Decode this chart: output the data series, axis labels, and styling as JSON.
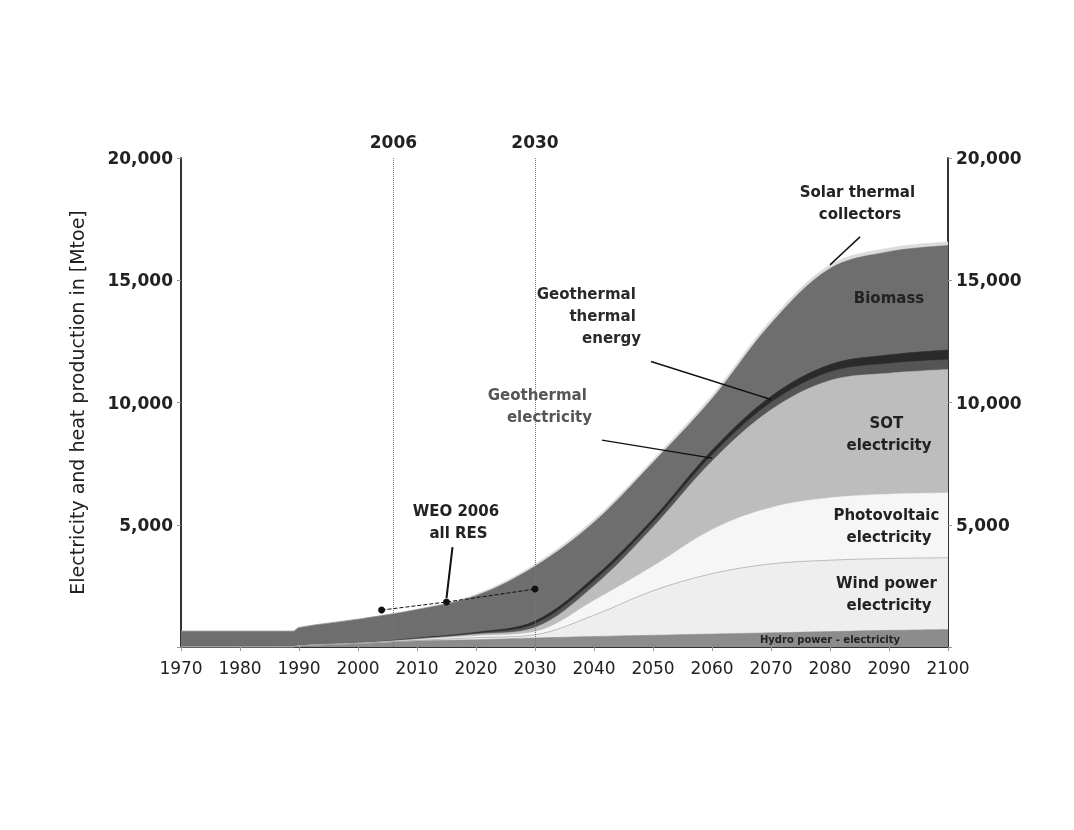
{
  "chart_data": {
    "type": "area",
    "stacked": true,
    "ylabel": "Electricity and heat production in [Mtoe]",
    "x": [
      1970,
      1989,
      1990,
      2000,
      2010,
      2020,
      2030,
      2040,
      2050,
      2060,
      2070,
      2080,
      2090,
      2100
    ],
    "xlim": [
      1970,
      2100
    ],
    "xticks": [
      1970,
      1980,
      1990,
      2000,
      2010,
      2020,
      2030,
      2040,
      2050,
      2060,
      2070,
      2080,
      2090,
      2100
    ],
    "ylim": [
      0,
      20000
    ],
    "yticks": [
      {
        "value": 0,
        "label": null
      },
      {
        "value": 5000,
        "label": "5,000"
      },
      {
        "value": 10000,
        "label": "10,000"
      },
      {
        "value": 15000,
        "label": "15,000"
      },
      {
        "value": 20000,
        "label": "20,000"
      }
    ],
    "y2lim": [
      0,
      20000
    ],
    "y2ticks": [
      {
        "value": 0,
        "label": null
      },
      {
        "value": 5000,
        "label": "5,000"
      },
      {
        "value": 10000,
        "label": "10,000"
      },
      {
        "value": 15000,
        "label": "15,000"
      },
      {
        "value": 20000,
        "label": "20,000"
      }
    ],
    "grid": false,
    "legend": false,
    "series": [
      {
        "name": "Hydro power - electricity",
        "color": "#8c8c8c",
        "values": [
          0,
          0,
          50,
          150,
          250,
          300,
          370,
          430,
          480,
          530,
          580,
          630,
          680,
          720
        ]
      },
      {
        "name": "Wind power electricity",
        "color": "#eeeeee",
        "values": [
          0,
          0,
          0,
          0,
          20,
          80,
          130,
          870,
          1820,
          2470,
          2820,
          2920,
          2940,
          2930
        ]
      },
      {
        "name": "Photovoltaic electricity",
        "color": "#f6f6f6",
        "values": [
          0,
          0,
          0,
          0,
          30,
          70,
          120,
          600,
          1000,
          1800,
          2300,
          2550,
          2630,
          2650
        ]
      },
      {
        "name": "SOT electricity",
        "color": "#bdbdbd",
        "values": [
          0,
          0,
          0,
          0,
          30,
          70,
          180,
          600,
          1600,
          2800,
          4000,
          4800,
          4950,
          5050
        ]
      },
      {
        "name": "Geothermal electricity",
        "color": "#555555",
        "values": [
          0,
          0,
          0,
          0,
          20,
          40,
          150,
          200,
          200,
          250,
          300,
          350,
          400,
          400
        ]
      },
      {
        "name": "Geothermal thermal energy",
        "color": "#2a2a2a",
        "values": [
          0,
          0,
          0,
          0,
          20,
          40,
          110,
          150,
          150,
          200,
          250,
          300,
          350,
          400
        ]
      },
      {
        "name": "Biomass",
        "color": "#6e6e6e",
        "values": [
          650,
          650,
          750,
          990,
          1160,
          1500,
          2240,
          2250,
          2300,
          2100,
          2980,
          3930,
          4220,
          4270
        ]
      },
      {
        "name": "Solar thermal collectors",
        "color": "#dcdcdc",
        "values": [
          0,
          0,
          0,
          0,
          20,
          60,
          90,
          120,
          120,
          150,
          150,
          150,
          150,
          150
        ]
      },
      {
        "name": "WEO 2006 all RES",
        "type": "line",
        "color": "#111111",
        "x": [
          2004,
          2015,
          2030
        ],
        "values": [
          1510,
          1840,
          2370
        ],
        "marker": "circle",
        "line_style": "dashed"
      }
    ],
    "ref_lines": [
      {
        "axis": "x",
        "value": 2006,
        "label": "2006",
        "line_style": "dotted",
        "color": "#777777"
      },
      {
        "axis": "x",
        "value": 2030,
        "label": "2030",
        "line_style": "dotted",
        "color": "#777777"
      }
    ]
  }
}
